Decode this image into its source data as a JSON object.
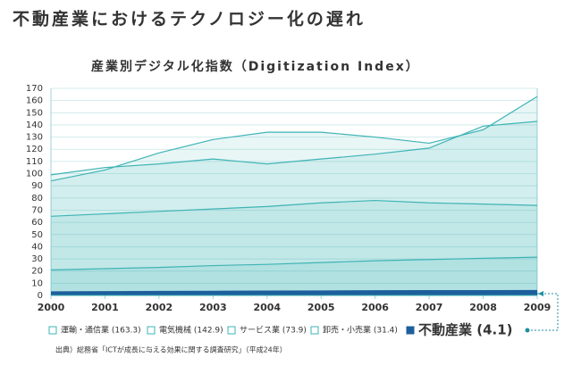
{
  "chart_data": {
    "type": "area",
    "title": "不動産業におけるテクノロジー化の遅れ",
    "subtitle": "産業別デジタル化指数（Digitization Index）",
    "source": "出典）総務省「ICTが成長に与える効果に関する調査研究」（平成24年）",
    "x": [
      2000,
      2001,
      2002,
      2003,
      2004,
      2005,
      2006,
      2007,
      2008,
      2009
    ],
    "xlim": [
      2000,
      2009
    ],
    "xticks": [
      2000,
      2001,
      2002,
      2003,
      2004,
      2005,
      2006,
      2007,
      2008,
      2009
    ],
    "ylim": [
      0,
      170
    ],
    "yticks": [
      0,
      10,
      20,
      30,
      40,
      50,
      60,
      70,
      80,
      90,
      100,
      110,
      120,
      130,
      140,
      150,
      160,
      170
    ],
    "grid": true,
    "series": [
      {
        "name": "運輸・通信業 (163.3)",
        "color": "#3fb3b5",
        "values": [
          94,
          103,
          117,
          128,
          134,
          134,
          130,
          125,
          136,
          163.3
        ]
      },
      {
        "name": "電気機械 (142.9)",
        "color": "#3fb3b5",
        "values": [
          99,
          105,
          108,
          112,
          108,
          112,
          116,
          121,
          139,
          142.9
        ]
      },
      {
        "name": "サービス業 (73.9)",
        "color": "#3fb3b5",
        "values": [
          65,
          67,
          69,
          71,
          73,
          76,
          78,
          76,
          75,
          73.9
        ]
      },
      {
        "name": "卸売・小売業 (31.4)",
        "color": "#3fb3b5",
        "values": [
          21,
          22,
          23,
          24.5,
          25.5,
          27,
          28.5,
          29.5,
          30.5,
          31.4
        ]
      },
      {
        "name": "不動産業 (4.1)",
        "color": "#1d5f9c",
        "values": [
          3,
          3.2,
          3.4,
          3.5,
          3.7,
          3.8,
          3.9,
          4,
          4,
          4.1
        ]
      }
    ]
  }
}
